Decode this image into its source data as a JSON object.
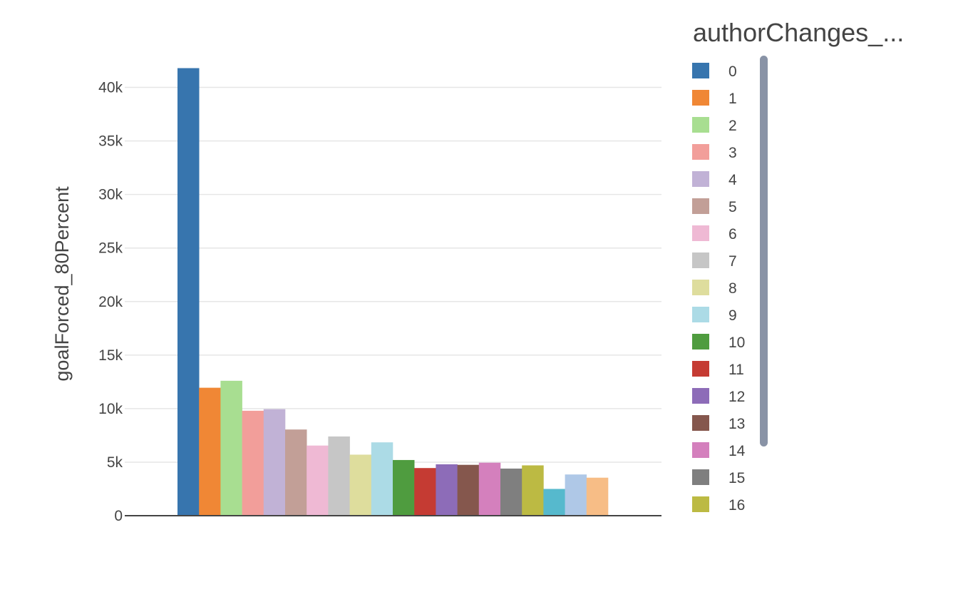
{
  "chart_data": {
    "type": "bar",
    "title": "",
    "xlabel": "",
    "ylabel": "goalForced_80Percent",
    "legend_title": "authorChanges_...",
    "legend_placement": "right",
    "grid": true,
    "ylim": [
      0,
      43500
    ],
    "yticks": [
      {
        "value": 0,
        "label": "0"
      },
      {
        "value": 5000,
        "label": "5k"
      },
      {
        "value": 10000,
        "label": "10k"
      },
      {
        "value": 15000,
        "label": "15k"
      },
      {
        "value": 20000,
        "label": "20k"
      },
      {
        "value": 25000,
        "label": "25k"
      },
      {
        "value": 30000,
        "label": "30k"
      },
      {
        "value": 35000,
        "label": "35k"
      },
      {
        "value": 40000,
        "label": "40k"
      }
    ],
    "series": [
      {
        "name": "0",
        "value": 41800,
        "color": "#3775ae"
      },
      {
        "name": "1",
        "value": 11950,
        "color": "#f08735"
      },
      {
        "name": "2",
        "value": 12600,
        "color": "#a8de91"
      },
      {
        "name": "3",
        "value": 9800,
        "color": "#f29e9a"
      },
      {
        "name": "4",
        "value": 9950,
        "color": "#c1b2d6"
      },
      {
        "name": "5",
        "value": 8050,
        "color": "#c29f97"
      },
      {
        "name": "6",
        "value": 6550,
        "color": "#efb9d4"
      },
      {
        "name": "7",
        "value": 7400,
        "color": "#c6c6c6"
      },
      {
        "name": "8",
        "value": 5700,
        "color": "#dedd9d"
      },
      {
        "name": "9",
        "value": 6850,
        "color": "#acdbe6"
      },
      {
        "name": "10",
        "value": 5200,
        "color": "#4f9c3f"
      },
      {
        "name": "11",
        "value": 4450,
        "color": "#c53b33"
      },
      {
        "name": "12",
        "value": 4800,
        "color": "#8d6cb8"
      },
      {
        "name": "13",
        "value": 4750,
        "color": "#85574d"
      },
      {
        "name": "14",
        "value": 4950,
        "color": "#d480bd"
      },
      {
        "name": "15",
        "value": 4400,
        "color": "#7f7f7f"
      },
      {
        "name": "16",
        "value": 4700,
        "color": "#bcba43"
      },
      {
        "name": "",
        "value": 2500,
        "color": "#56b9cd"
      },
      {
        "name": "",
        "value": 3850,
        "color": "#afc8e7"
      },
      {
        "name": "",
        "value": 3550,
        "color": "#f7bd86"
      }
    ]
  }
}
